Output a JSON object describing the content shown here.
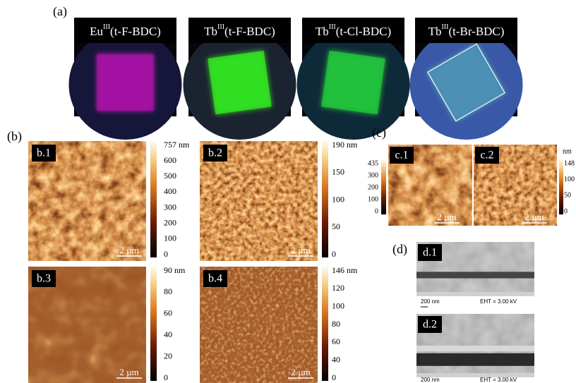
{
  "a": {
    "label": "(a)",
    "photos": [
      {
        "element": "Eu",
        "oxidation": "III",
        "ligand": "(t-F-BDC)"
      },
      {
        "element": "Tb",
        "oxidation": "III",
        "ligand": "(t-F-BDC)"
      },
      {
        "element": "Tb",
        "oxidation": "III",
        "ligand": "(t-Cl-BDC)"
      },
      {
        "element": "Tb",
        "oxidation": "III",
        "ligand": "(t-Br-BDC)"
      }
    ]
  },
  "b": {
    "label": "(b)",
    "panels": [
      {
        "label": "b.1",
        "scale_bar": "2 µm",
        "colorbar": [
          "757 nm",
          "600",
          "500",
          "400",
          "300",
          "200",
          "100",
          "0"
        ]
      },
      {
        "label": "b.2",
        "scale_bar": "2 µm",
        "colorbar": [
          "190 nm",
          "150",
          "100",
          "50",
          "0"
        ]
      },
      {
        "label": "b.3",
        "scale_bar": "2 µm",
        "colorbar": [
          "90 nm",
          "80",
          "60",
          "40",
          "20",
          "0"
        ]
      },
      {
        "label": "b.4",
        "scale_bar": "2 µm",
        "colorbar": [
          "146 nm",
          "120",
          "100",
          "80",
          "60",
          "40",
          "0"
        ]
      }
    ]
  },
  "c": {
    "label": "(c)",
    "unit": "nm",
    "panels": [
      {
        "label": "c.1",
        "scale_bar": "2 µm",
        "colorbar": [
          "435",
          "300",
          "200",
          "100",
          "0"
        ]
      },
      {
        "label": "c.2",
        "scale_bar": "2 µm",
        "colorbar": [
          "148",
          "100",
          "50",
          "0"
        ]
      }
    ]
  },
  "d": {
    "label": "(d)",
    "panels": [
      {
        "label": "d.1",
        "scale_bar": "200 nm",
        "voltage": "EHT = 3.00 kV"
      },
      {
        "label": "d.2",
        "scale_bar": "200 nm",
        "voltage": "EHT = 3.00 kV"
      }
    ]
  }
}
